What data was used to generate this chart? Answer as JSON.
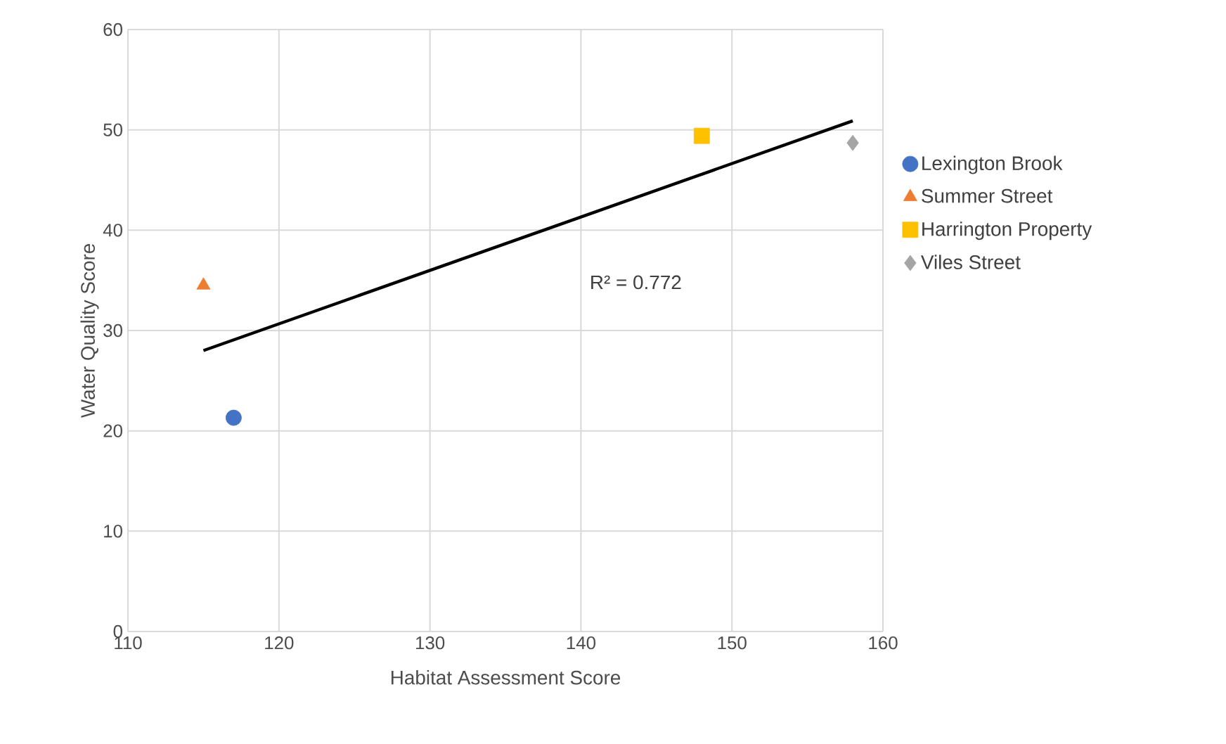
{
  "chart_data": {
    "type": "scatter",
    "xlabel": "Habitat Assessment Score",
    "ylabel": "Water Quality Score",
    "xlim": [
      110,
      160
    ],
    "xticks": [
      110,
      120,
      130,
      140,
      150,
      160
    ],
    "ylim": [
      0,
      60
    ],
    "yticks": [
      0,
      10,
      20,
      30,
      40,
      50,
      60
    ],
    "grid": true,
    "legend": "right",
    "series": [
      {
        "name": "Lexington Brook",
        "color": "#4472c4",
        "marker": "circle",
        "x": [
          117
        ],
        "values": [
          21.3
        ]
      },
      {
        "name": "Summer Street",
        "color": "#ed7d31",
        "marker": "triangle",
        "x": [
          115
        ],
        "values": [
          34.5
        ]
      },
      {
        "name": "Harrington Property",
        "color": "#ffc000",
        "marker": "square",
        "x": [
          148
        ],
        "values": [
          49.4
        ]
      },
      {
        "name": "Viles Street",
        "color": "#a5a5a5",
        "marker": "diamond",
        "x": [
          158
        ],
        "values": [
          48.7
        ]
      },
      {
        "type": "line",
        "color": "#000000",
        "marker": "none",
        "line_style": "solid",
        "x": [
          115,
          158
        ],
        "values": [
          28.0,
          50.9
        ]
      }
    ],
    "annotations": [
      "R² = 0.772"
    ]
  }
}
